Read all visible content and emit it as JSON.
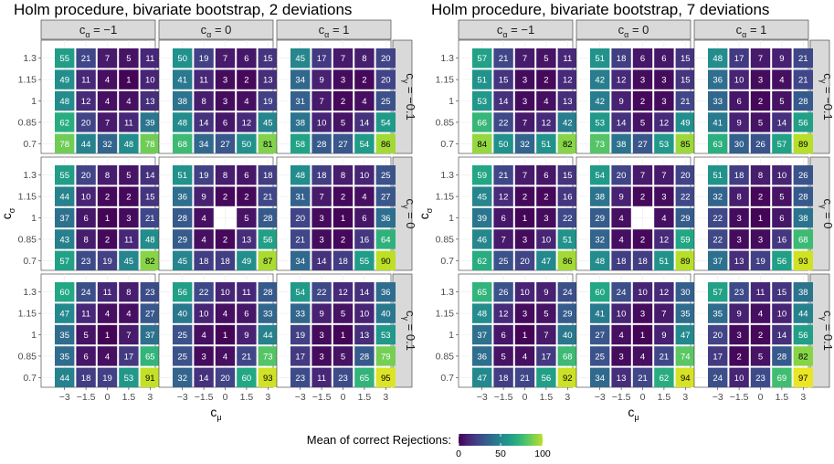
{
  "chart_data": {
    "type": "heatmap",
    "x_tick_labels": [
      "−3",
      "−1.5",
      "0",
      "1.5",
      "3"
    ],
    "y_tick_labels": [
      "1.3",
      "1.15",
      "1",
      "0.85",
      "0.7"
    ],
    "xlabel": "c",
    "xlabel_sub": "μ",
    "ylabel": "c",
    "ylabel_sub": "σ",
    "col_strip_labels": [
      {
        "main": "c",
        "sub": "α",
        "rest": " = −1"
      },
      {
        "main": "c",
        "sub": "α",
        "rest": " = 0"
      },
      {
        "main": "c",
        "sub": "α",
        "rest": " = 1"
      }
    ],
    "row_strip_labels": [
      {
        "main": "c",
        "sub": "γ",
        "rest": " = −0.1"
      },
      {
        "main": "c",
        "sub": "γ",
        "rest": " = 0"
      },
      {
        "main": "c",
        "sub": "γ",
        "rest": " = 0.1"
      }
    ],
    "legend": {
      "title": "Mean of correct Rejections:",
      "ticks": [
        0,
        50,
        100
      ],
      "range": [
        0,
        100
      ],
      "colormap": "viridis",
      "position": "bottom"
    },
    "figures": [
      {
        "title": "Holm procedure, bivariate bootstrap, 2 deviations",
        "panels": [
          [
            [
              [
                55,
                21,
                7,
                5,
                11
              ],
              [
                49,
                11,
                4,
                1,
                10
              ],
              [
                48,
                12,
                4,
                4,
                13
              ],
              [
                62,
                20,
                7,
                11,
                39
              ],
              [
                78,
                44,
                32,
                48,
                78
              ]
            ],
            [
              [
                50,
                19,
                7,
                6,
                15
              ],
              [
                41,
                11,
                3,
                2,
                13
              ],
              [
                38,
                8,
                3,
                4,
                19
              ],
              [
                48,
                14,
                6,
                12,
                45
              ],
              [
                68,
                34,
                27,
                50,
                81
              ]
            ],
            [
              [
                45,
                17,
                7,
                8,
                20
              ],
              [
                34,
                9,
                3,
                2,
                20
              ],
              [
                31,
                7,
                2,
                4,
                25
              ],
              [
                38,
                10,
                5,
                14,
                54
              ],
              [
                58,
                28,
                27,
                54,
                86
              ]
            ]
          ],
          [
            [
              [
                55,
                20,
                8,
                5,
                14
              ],
              [
                44,
                10,
                2,
                2,
                15
              ],
              [
                37,
                6,
                1,
                3,
                21
              ],
              [
                43,
                8,
                2,
                11,
                48
              ],
              [
                57,
                23,
                19,
                45,
                82
              ]
            ],
            [
              [
                51,
                19,
                8,
                6,
                18
              ],
              [
                36,
                9,
                2,
                2,
                21
              ],
              [
                28,
                4,
                null,
                5,
                28
              ],
              [
                29,
                4,
                2,
                13,
                56
              ],
              [
                45,
                18,
                18,
                49,
                87
              ]
            ],
            [
              [
                48,
                18,
                8,
                10,
                25
              ],
              [
                31,
                7,
                2,
                4,
                27
              ],
              [
                20,
                3,
                1,
                6,
                36
              ],
              [
                21,
                3,
                2,
                16,
                64
              ],
              [
                34,
                14,
                18,
                55,
                90
              ]
            ]
          ],
          [
            [
              [
                60,
                24,
                11,
                8,
                23
              ],
              [
                47,
                11,
                4,
                4,
                27
              ],
              [
                35,
                5,
                1,
                7,
                37
              ],
              [
                35,
                6,
                4,
                17,
                65
              ],
              [
                44,
                18,
                19,
                53,
                91
              ]
            ],
            [
              [
                56,
                22,
                10,
                11,
                28
              ],
              [
                40,
                10,
                4,
                6,
                33
              ],
              [
                25,
                4,
                1,
                9,
                44
              ],
              [
                25,
                3,
                4,
                21,
                73
              ],
              [
                32,
                14,
                20,
                60,
                93
              ]
            ],
            [
              [
                54,
                22,
                12,
                14,
                36
              ],
              [
                33,
                9,
                5,
                10,
                40
              ],
              [
                19,
                3,
                1,
                13,
                53
              ],
              [
                17,
                3,
                5,
                28,
                79
              ],
              [
                23,
                11,
                23,
                65,
                95
              ]
            ]
          ]
        ]
      },
      {
        "title": "Holm procedure, bivariate bootstrap, 7 deviations",
        "panels": [
          [
            [
              [
                57,
                21,
                7,
                5,
                11
              ],
              [
                51,
                15,
                3,
                2,
                12
              ],
              [
                53,
                14,
                3,
                4,
                13
              ],
              [
                66,
                22,
                7,
                12,
                42
              ],
              [
                84,
                50,
                32,
                51,
                82
              ]
            ],
            [
              [
                51,
                18,
                6,
                6,
                15
              ],
              [
                42,
                12,
                3,
                3,
                15
              ],
              [
                42,
                9,
                2,
                3,
                21
              ],
              [
                53,
                14,
                5,
                12,
                49
              ],
              [
                73,
                38,
                27,
                53,
                85
              ]
            ],
            [
              [
                48,
                17,
                7,
                9,
                21
              ],
              [
                36,
                10,
                3,
                4,
                21
              ],
              [
                33,
                6,
                2,
                5,
                28
              ],
              [
                41,
                9,
                5,
                14,
                56
              ],
              [
                63,
                30,
                26,
                57,
                89
              ]
            ]
          ],
          [
            [
              [
                59,
                21,
                7,
                6,
                15
              ],
              [
                45,
                12,
                2,
                2,
                16
              ],
              [
                39,
                6,
                1,
                3,
                22
              ],
              [
                46,
                7,
                3,
                10,
                51
              ],
              [
                62,
                25,
                20,
                47,
                86
              ]
            ],
            [
              [
                54,
                20,
                7,
                7,
                20
              ],
              [
                38,
                9,
                2,
                3,
                22
              ],
              [
                29,
                4,
                null,
                4,
                29
              ],
              [
                32,
                4,
                2,
                12,
                59
              ],
              [
                48,
                18,
                18,
                51,
                89
              ]
            ],
            [
              [
                51,
                18,
                8,
                10,
                26
              ],
              [
                32,
                8,
                2,
                5,
                28
              ],
              [
                22,
                3,
                1,
                6,
                38
              ],
              [
                22,
                3,
                3,
                16,
                68
              ],
              [
                37,
                13,
                19,
                56,
                93
              ]
            ]
          ],
          [
            [
              [
                65,
                26,
                10,
                9,
                24
              ],
              [
                48,
                12,
                3,
                5,
                29
              ],
              [
                37,
                6,
                1,
                7,
                40
              ],
              [
                36,
                5,
                4,
                17,
                68
              ],
              [
                47,
                18,
                21,
                56,
                92
              ]
            ],
            [
              [
                60,
                24,
                10,
                12,
                30
              ],
              [
                41,
                10,
                3,
                7,
                35
              ],
              [
                27,
                4,
                1,
                9,
                47
              ],
              [
                25,
                3,
                4,
                21,
                74
              ],
              [
                34,
                13,
                21,
                62,
                94
              ]
            ],
            [
              [
                57,
                23,
                11,
                15,
                38
              ],
              [
                35,
                9,
                4,
                10,
                44
              ],
              [
                20,
                3,
                2,
                14,
                56
              ],
              [
                17,
                2,
                5,
                28,
                82
              ],
              [
                24,
                10,
                23,
                69,
                97
              ]
            ]
          ]
        ]
      }
    ]
  }
}
